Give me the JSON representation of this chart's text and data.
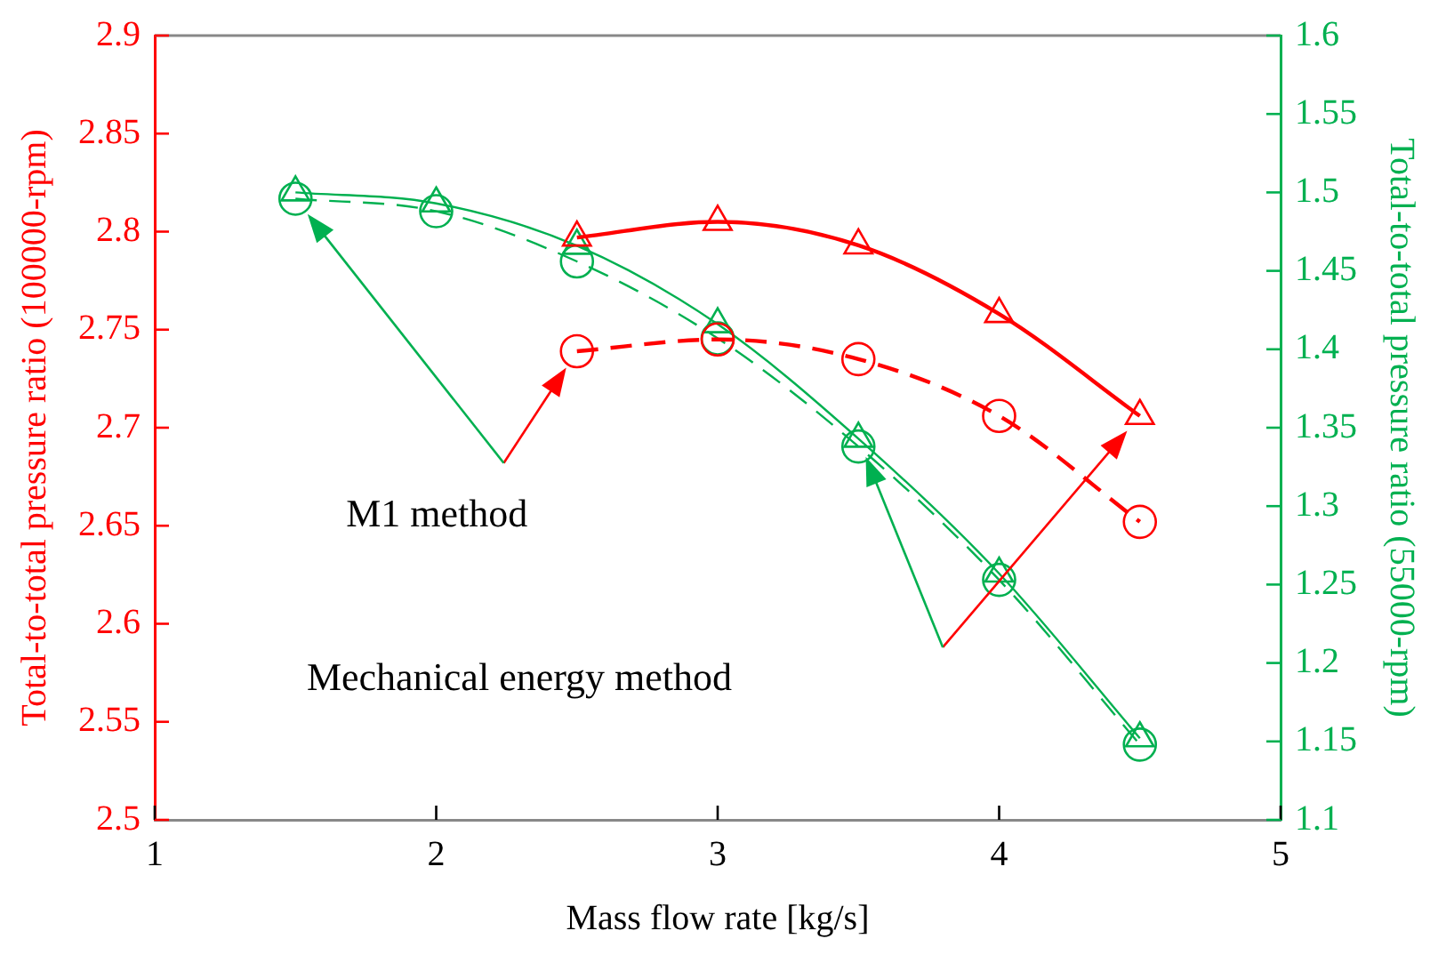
{
  "chart_data": {
    "type": "line",
    "xlabel": "Mass flow rate [kg/s]",
    "ylabel": "Total-to-total pressure ratio (100000-rpm)",
    "y2label": "Total-to-total pressure ratio (55000-rpm)",
    "xlim": [
      1,
      5
    ],
    "xticks": [
      1,
      2,
      3,
      4,
      5
    ],
    "ylim": [
      2.5,
      2.9
    ],
    "yticks": [
      2.5,
      2.55,
      2.6,
      2.65,
      2.7,
      2.75,
      2.8,
      2.85,
      2.9
    ],
    "y2lim": [
      1.1,
      1.6
    ],
    "y2ticks": [
      1.1,
      1.15,
      1.2,
      1.25,
      1.3,
      1.35,
      1.4,
      1.45,
      1.5,
      1.55,
      1.6
    ],
    "grid": false,
    "legend": false,
    "series": [
      {
        "color": "#ff0000",
        "marker": "triangle",
        "line_style": "solid",
        "x": [
          2.5,
          3,
          3.5,
          4,
          4.5
        ],
        "values": [
          2.797,
          2.805,
          2.793,
          2.758,
          2.706
        ]
      },
      {
        "color": "#ff0000",
        "marker": "circle",
        "line_style": "dashed",
        "x": [
          2.5,
          3,
          3.5,
          4,
          4.5
        ],
        "values": [
          2.739,
          2.745,
          2.735,
          2.706,
          2.652
        ]
      },
      {
        "color": "#00b050",
        "marker": "triangle",
        "line_style": "solid",
        "axis": "y2",
        "x": [
          1.5,
          2,
          2.5,
          3,
          3.5,
          4,
          4.5
        ],
        "values": [
          1.5,
          1.493,
          1.466,
          1.416,
          1.343,
          1.257,
          1.152
        ]
      },
      {
        "color": "#00b050",
        "marker": "circle",
        "line_style": "dashed",
        "axis": "y2",
        "x": [
          1.5,
          2,
          2.5,
          3,
          3.5,
          4,
          4.5
        ],
        "values": [
          1.496,
          1.488,
          1.456,
          1.407,
          1.338,
          1.253,
          1.148
        ]
      }
    ],
    "annotations": [
      "M1 method",
      "Mechanical energy method"
    ]
  }
}
